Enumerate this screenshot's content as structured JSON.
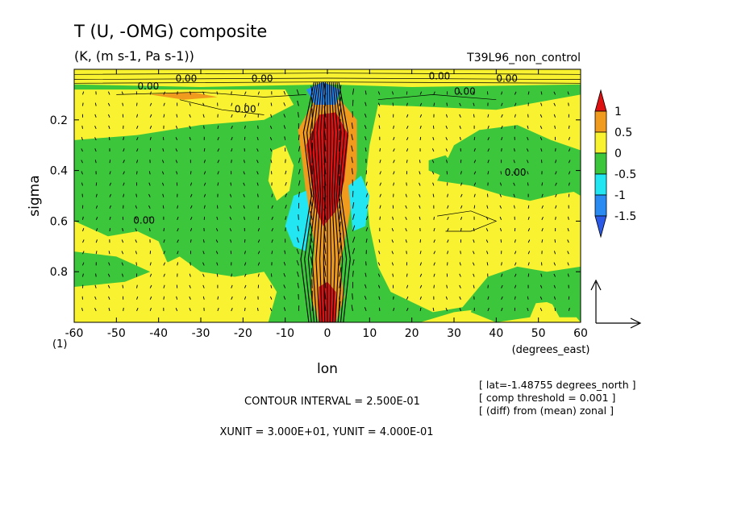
{
  "chart_data": {
    "type": "heatmap",
    "title": "T (U, -OMG) composite",
    "subtitle": "(K, (m s-1, Pa s-1))",
    "experiment": "T39L96_non_control",
    "xlabel": "lon",
    "xunits": "(degrees_east)",
    "ylabel": "sigma",
    "ybottom_label": "(1)",
    "xlim": [
      -60,
      60
    ],
    "ylim": [
      1.0,
      0.0
    ],
    "x_ticks": [
      "-60",
      "-50",
      "-40",
      "-30",
      "-20",
      "-10",
      "0",
      "10",
      "20",
      "30",
      "40",
      "50",
      "60"
    ],
    "y_ticks": [
      "0.2",
      "0.4",
      "0.6",
      "0.8"
    ],
    "colorbar": {
      "labels": [
        "1",
        "0.5",
        "0",
        "-0.5",
        "-1",
        "-1.5"
      ],
      "colors": [
        "#dd1111",
        "#f09a1e",
        "#f8f230",
        "#3cc63c",
        "#22e6f2",
        "#2a8cf2",
        "#2a5ae6"
      ]
    },
    "contour_labels": [
      "0.00",
      "0.00",
      "0.00",
      "0.00",
      "0.00",
      "0.00",
      "0.00",
      "0.00",
      "0.00"
    ],
    "contour_interval": "CONTOUR INTERVAL = 2.500E-01",
    "units_line": "XUNIT = 3.000E+01, YUNIT = 4.000E-01",
    "info": [
      "[ lat=-1.48755 degrees_north ]",
      "[ comp threshold = 0.001 ]",
      "[ (diff) from (mean) zonal ]"
    ]
  }
}
